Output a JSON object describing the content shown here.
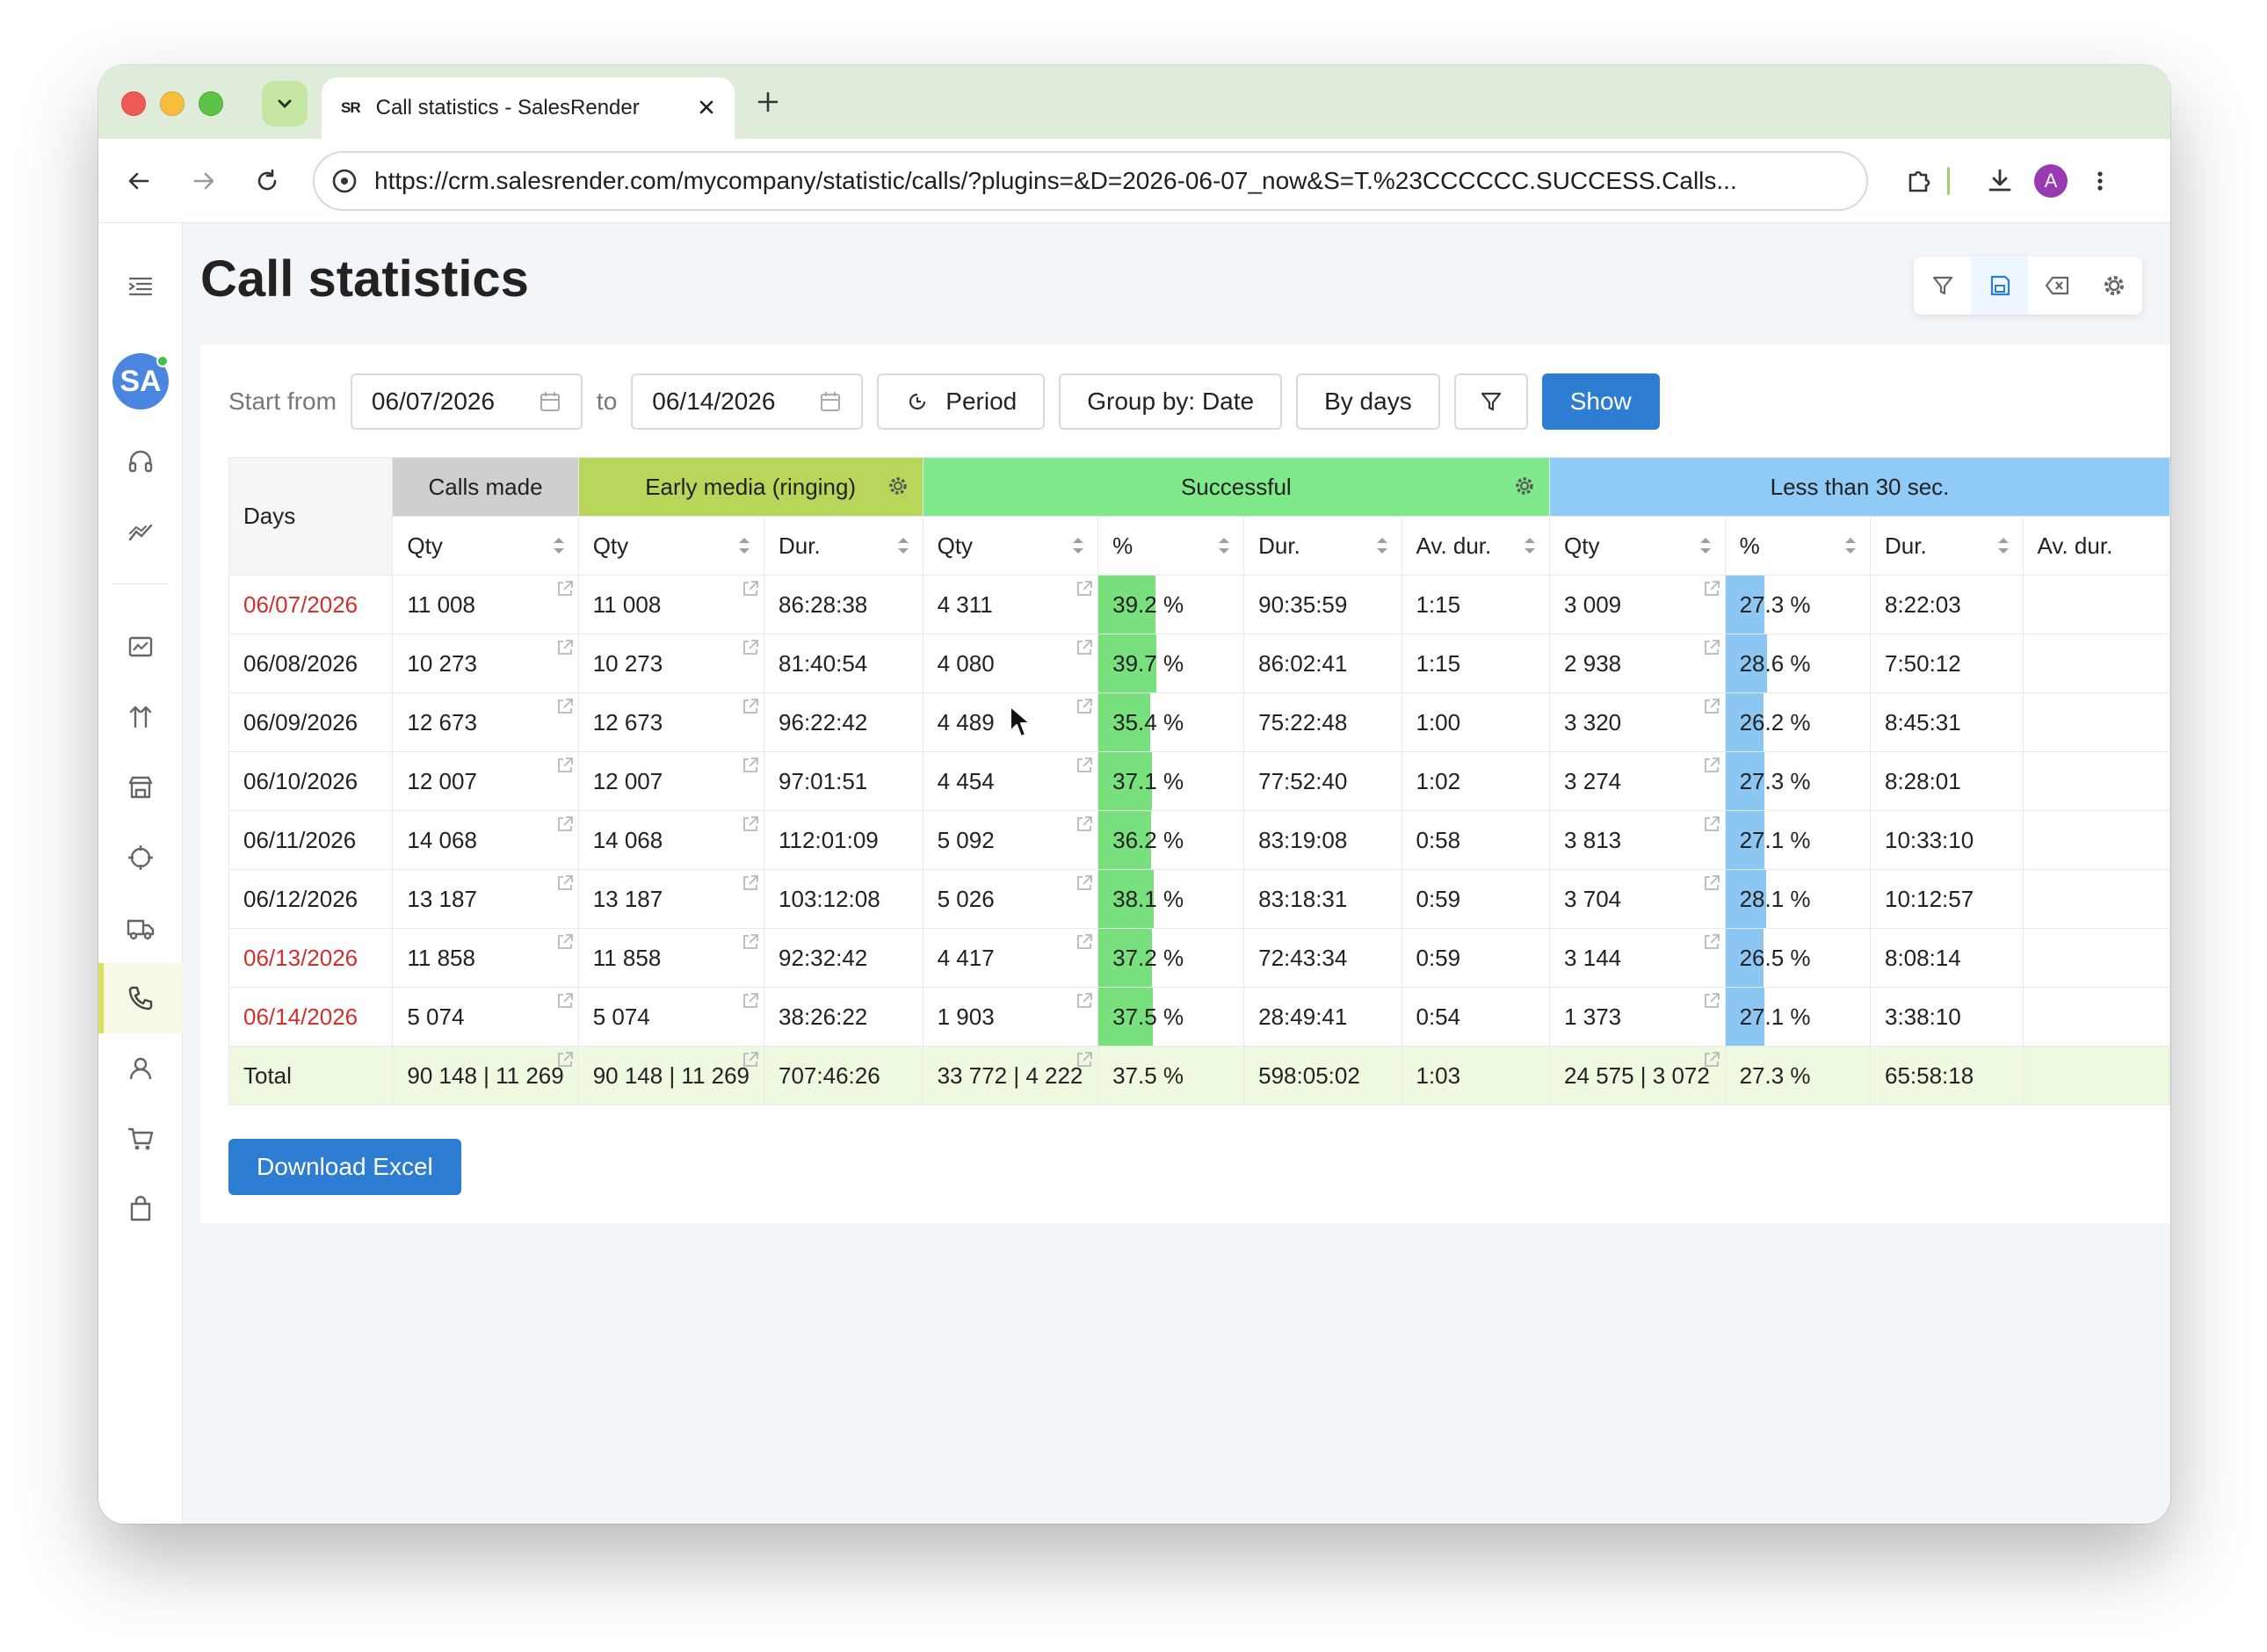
{
  "browser": {
    "tab_title": "Call statistics - SalesRender",
    "favicon_text": "SR",
    "url": "https://crm.salesrender.com/mycompany/statistic/calls/?plugins=&D=2026-06-07_now&S=T.%23CCCCCC.SUCCESS.Calls...",
    "profile_initial": "A"
  },
  "sidebar": {
    "avatar_initials": "SA",
    "items": [
      "menu-collapse",
      "headset",
      "analytics",
      "dashboard",
      "sort",
      "store",
      "target",
      "delivery",
      "calls",
      "user",
      "cart",
      "bag"
    ],
    "active": "calls"
  },
  "page": {
    "title": "Call statistics"
  },
  "filters": {
    "start_label": "Start from",
    "start_date": "06/07/2026",
    "to_label": "to",
    "end_date": "06/14/2026",
    "period_label": "Period",
    "group_by_label": "Group by: Date",
    "by_days_label": "By days",
    "show_label": "Show"
  },
  "table": {
    "groups": {
      "days": "Days",
      "calls_made": "Calls made",
      "early_media": "Early media (ringing)",
      "successful": "Successful",
      "less_30": "Less than 30 sec."
    },
    "subheaders": {
      "qty": "Qty",
      "dur": "Dur.",
      "pct": "%",
      "avdur": "Av. dur."
    },
    "rows": [
      {
        "day": "06/07/2026",
        "weekend": true,
        "calls_qty": "11 008",
        "early_qty": "11 008",
        "early_dur": "86:28:38",
        "succ_qty": "4 311",
        "succ_pct": "39.2",
        "succ_dur": "90:35:59",
        "succ_avdur": "1:15",
        "less_qty": "3 009",
        "less_pct": "27.3",
        "less_dur": "8:22:03"
      },
      {
        "day": "06/08/2026",
        "weekend": false,
        "calls_qty": "10 273",
        "early_qty": "10 273",
        "early_dur": "81:40:54",
        "succ_qty": "4 080",
        "succ_pct": "39.7",
        "succ_dur": "86:02:41",
        "succ_avdur": "1:15",
        "less_qty": "2 938",
        "less_pct": "28.6",
        "less_dur": "7:50:12"
      },
      {
        "day": "06/09/2026",
        "weekend": false,
        "calls_qty": "12 673",
        "early_qty": "12 673",
        "early_dur": "96:22:42",
        "succ_qty": "4 489",
        "succ_pct": "35.4",
        "succ_dur": "75:22:48",
        "succ_avdur": "1:00",
        "less_qty": "3 320",
        "less_pct": "26.2",
        "less_dur": "8:45:31"
      },
      {
        "day": "06/10/2026",
        "weekend": false,
        "calls_qty": "12 007",
        "early_qty": "12 007",
        "early_dur": "97:01:51",
        "succ_qty": "4 454",
        "succ_pct": "37.1",
        "succ_dur": "77:52:40",
        "succ_avdur": "1:02",
        "less_qty": "3 274",
        "less_pct": "27.3",
        "less_dur": "8:28:01"
      },
      {
        "day": "06/11/2026",
        "weekend": false,
        "calls_qty": "14 068",
        "early_qty": "14 068",
        "early_dur": "112:01:09",
        "succ_qty": "5 092",
        "succ_pct": "36.2",
        "succ_dur": "83:19:08",
        "succ_avdur": "0:58",
        "less_qty": "3 813",
        "less_pct": "27.1",
        "less_dur": "10:33:10"
      },
      {
        "day": "06/12/2026",
        "weekend": false,
        "calls_qty": "13 187",
        "early_qty": "13 187",
        "early_dur": "103:12:08",
        "succ_qty": "5 026",
        "succ_pct": "38.1",
        "succ_dur": "83:18:31",
        "succ_avdur": "0:59",
        "less_qty": "3 704",
        "less_pct": "28.1",
        "less_dur": "10:12:57"
      },
      {
        "day": "06/13/2026",
        "weekend": true,
        "calls_qty": "11 858",
        "early_qty": "11 858",
        "early_dur": "92:32:42",
        "succ_qty": "4 417",
        "succ_pct": "37.2",
        "succ_dur": "72:43:34",
        "succ_avdur": "0:59",
        "less_qty": "3 144",
        "less_pct": "26.5",
        "less_dur": "8:08:14"
      },
      {
        "day": "06/14/2026",
        "weekend": true,
        "calls_qty": "5 074",
        "early_qty": "5 074",
        "early_dur": "38:26:22",
        "succ_qty": "1 903",
        "succ_pct": "37.5",
        "succ_dur": "28:49:41",
        "succ_avdur": "0:54",
        "less_qty": "1 373",
        "less_pct": "27.1",
        "less_dur": "3:38:10"
      }
    ],
    "total": {
      "label": "Total",
      "calls_qty": "90 148 | 11 269",
      "early_qty": "90 148 | 11 269",
      "early_dur": "707:46:26",
      "succ_qty": "33 772 | 4 222",
      "succ_pct": "37.5 %",
      "succ_dur": "598:05:02",
      "succ_avdur": "1:03",
      "less_qty": "24 575 | 3 072",
      "less_pct": "27.3 %",
      "less_dur": "65:58:18"
    },
    "colors": {
      "calls_made": "#cfcfcf",
      "early_media": "#b8d65a",
      "successful": "#7ee88b",
      "less_30": "#90caf6",
      "weekend_text": "#d0312d"
    }
  },
  "actions": {
    "download_label": "Download Excel"
  }
}
